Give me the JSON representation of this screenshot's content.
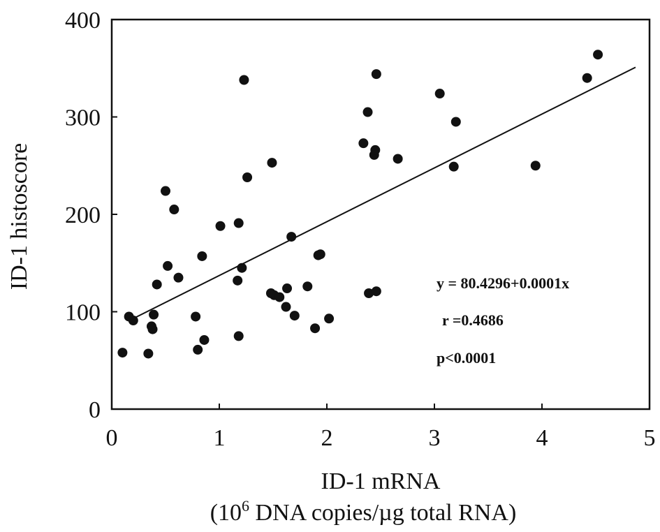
{
  "chart_data": {
    "type": "scatter",
    "xlabel": "ID-1 mRNA",
    "xlabel_line2": {
      "pre": "(10",
      "sup": "6",
      "post": " DNA copies/µg total RNA)"
    },
    "ylabel": "ID-1 histoscore",
    "xlim": [
      0,
      5
    ],
    "ylim": [
      0,
      400
    ],
    "xticks": [
      0,
      1,
      2,
      3,
      4,
      5
    ],
    "yticks": [
      0,
      100,
      200,
      300,
      400
    ],
    "xtick_labels": [
      "0",
      "1",
      "2",
      "3",
      "4",
      "5"
    ],
    "ytick_labels": [
      "0",
      "100",
      "200",
      "300",
      "400"
    ],
    "grid": false,
    "points": [
      {
        "x": 0.1,
        "y": 58
      },
      {
        "x": 0.16,
        "y": 95
      },
      {
        "x": 0.2,
        "y": 91
      },
      {
        "x": 0.34,
        "y": 57
      },
      {
        "x": 0.37,
        "y": 85
      },
      {
        "x": 0.38,
        "y": 82
      },
      {
        "x": 0.39,
        "y": 97
      },
      {
        "x": 0.42,
        "y": 128
      },
      {
        "x": 0.5,
        "y": 224
      },
      {
        "x": 0.52,
        "y": 147
      },
      {
        "x": 0.58,
        "y": 205
      },
      {
        "x": 0.62,
        "y": 135
      },
      {
        "x": 0.78,
        "y": 95
      },
      {
        "x": 0.8,
        "y": 61
      },
      {
        "x": 0.84,
        "y": 157
      },
      {
        "x": 0.86,
        "y": 71
      },
      {
        "x": 1.01,
        "y": 188
      },
      {
        "x": 1.17,
        "y": 132
      },
      {
        "x": 1.18,
        "y": 75
      },
      {
        "x": 1.18,
        "y": 191
      },
      {
        "x": 1.21,
        "y": 145
      },
      {
        "x": 1.23,
        "y": 338
      },
      {
        "x": 1.26,
        "y": 238
      },
      {
        "x": 1.48,
        "y": 119
      },
      {
        "x": 1.49,
        "y": 253
      },
      {
        "x": 1.51,
        "y": 117
      },
      {
        "x": 1.56,
        "y": 115
      },
      {
        "x": 1.62,
        "y": 105
      },
      {
        "x": 1.63,
        "y": 124
      },
      {
        "x": 1.67,
        "y": 177
      },
      {
        "x": 1.7,
        "y": 96
      },
      {
        "x": 1.82,
        "y": 126
      },
      {
        "x": 1.89,
        "y": 83
      },
      {
        "x": 1.92,
        "y": 158
      },
      {
        "x": 1.94,
        "y": 159
      },
      {
        "x": 2.02,
        "y": 93
      },
      {
        "x": 2.34,
        "y": 273
      },
      {
        "x": 2.38,
        "y": 305
      },
      {
        "x": 2.39,
        "y": 119
      },
      {
        "x": 2.44,
        "y": 261
      },
      {
        "x": 2.45,
        "y": 266
      },
      {
        "x": 2.46,
        "y": 344
      },
      {
        "x": 2.46,
        "y": 121
      },
      {
        "x": 2.66,
        "y": 257
      },
      {
        "x": 3.05,
        "y": 324
      },
      {
        "x": 3.18,
        "y": 249
      },
      {
        "x": 3.2,
        "y": 295
      },
      {
        "x": 3.94,
        "y": 250
      },
      {
        "x": 4.42,
        "y": 340
      },
      {
        "x": 4.52,
        "y": 364
      }
    ],
    "trendline": {
      "x": [
        0.2,
        4.87
      ],
      "y": [
        93,
        351
      ]
    },
    "annotations": [
      "y = 80.4296+0.0001x",
      "r =0.4686",
      "p<0.0001"
    ]
  }
}
